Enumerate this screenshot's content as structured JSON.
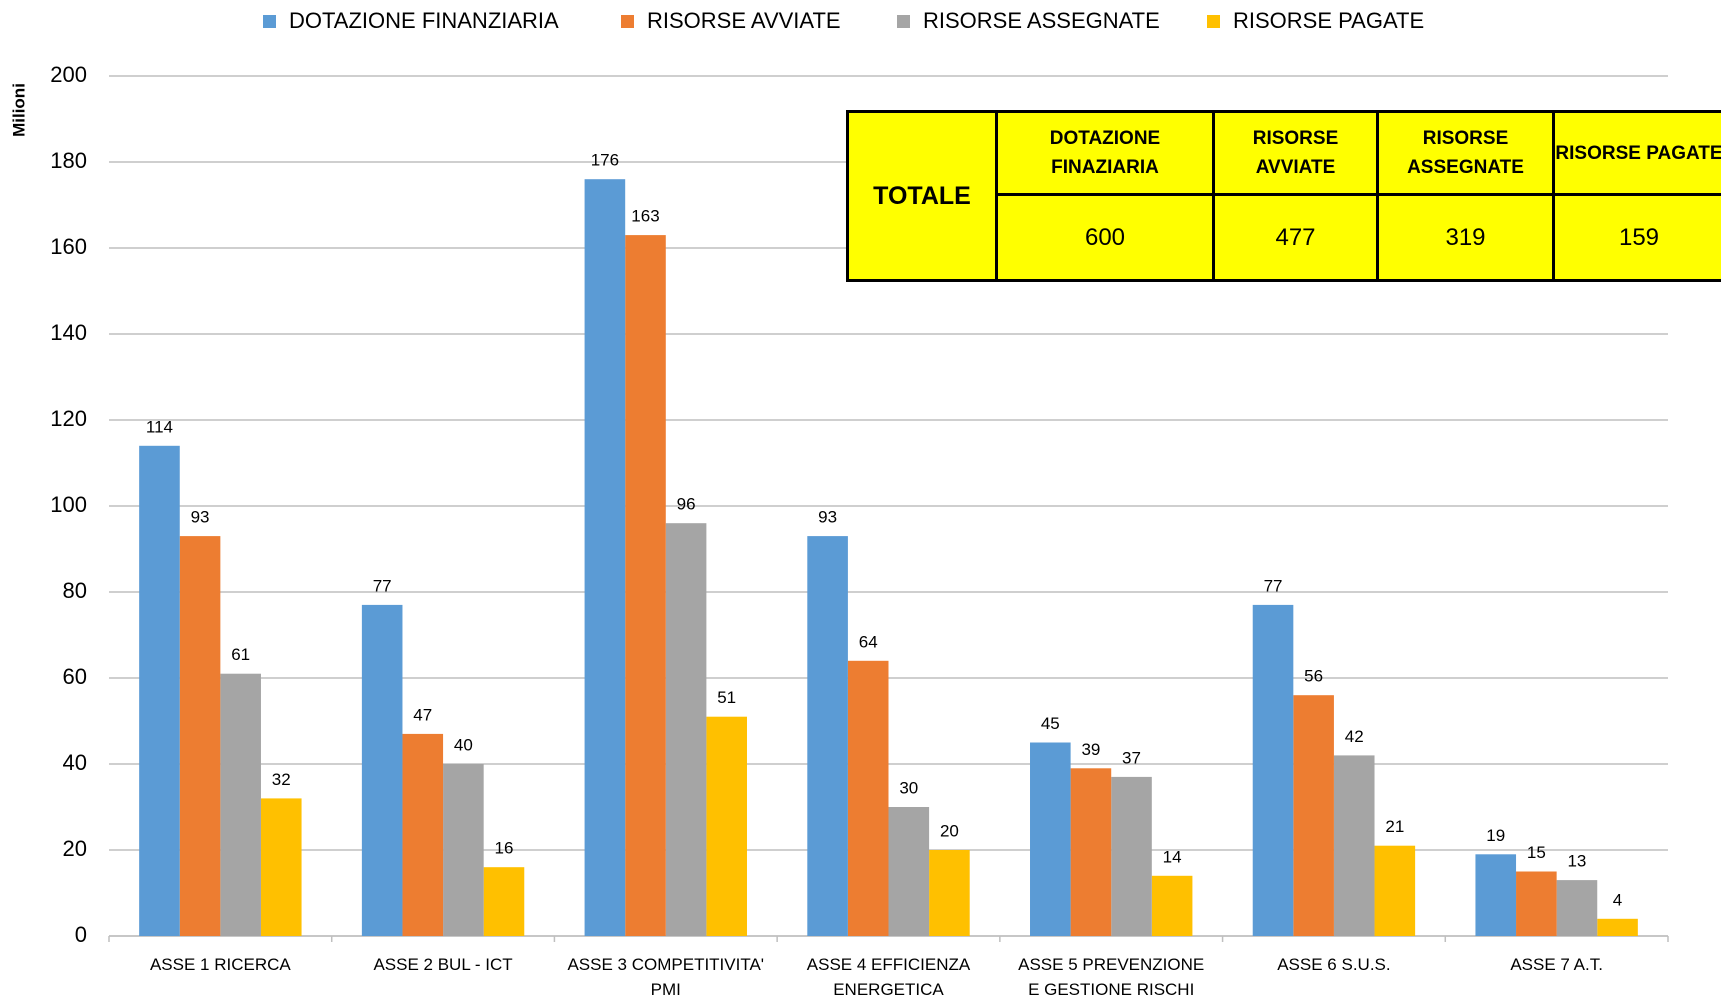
{
  "chart_data": {
    "type": "bar",
    "y_label": "Milioni",
    "categories": [
      "ASSE 1 RICERCA",
      "ASSE 2 BUL - ICT",
      "ASSE 3 COMPETITIVITA' PMI",
      "ASSE 4 EFFICIENZA ENERGETICA",
      "ASSE 5 PREVENZIONE E GESTIONE RISCHI",
      "ASSE 6 S.U.S.",
      "ASSE 7 A.T."
    ],
    "series": [
      {
        "name": "DOTAZIONE FINANZIARIA",
        "color": "#5b9bd5",
        "values": [
          114,
          77,
          176,
          93,
          45,
          77,
          19
        ]
      },
      {
        "name": "RISORSE AVVIATE",
        "color": "#ed7d31",
        "values": [
          93,
          47,
          163,
          64,
          39,
          56,
          15
        ]
      },
      {
        "name": "RISORSE ASSEGNATE",
        "color": "#a5a5a5",
        "values": [
          61,
          40,
          96,
          30,
          37,
          42,
          13
        ]
      },
      {
        "name": "RISORSE PAGATE",
        "color": "#ffc000",
        "values": [
          32,
          16,
          51,
          20,
          14,
          21,
          4
        ]
      }
    ],
    "ylim": [
      0,
      200
    ],
    "yticks": [
      0,
      20,
      40,
      60,
      80,
      100,
      120,
      140,
      160,
      180,
      200
    ],
    "grid": true,
    "legend": "top",
    "table": {
      "label": "TOTALE",
      "headers": [
        "DOTAZIONE FINAZIARIA",
        "RISORSE AVVIATE",
        "RISORSE ASSEGNATE",
        "RISORSE PAGATE"
      ],
      "values": [
        600,
        477,
        319,
        159
      ]
    }
  }
}
